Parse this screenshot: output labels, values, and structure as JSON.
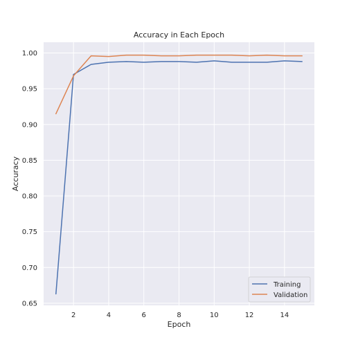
{
  "chart_data": {
    "type": "line",
    "title": "Accuracy in Each Epoch",
    "xlabel": "Epoch",
    "ylabel": "Accuracy",
    "x": [
      1,
      2,
      3,
      4,
      5,
      6,
      7,
      8,
      9,
      10,
      11,
      12,
      13,
      14,
      15
    ],
    "xlim": [
      0.3,
      15.7
    ],
    "ylim": [
      0.647,
      1.015
    ],
    "xticks": [
      2,
      4,
      6,
      8,
      10,
      12,
      14
    ],
    "yticks": [
      0.65,
      0.7,
      0.75,
      0.8,
      0.85,
      0.9,
      0.95,
      1.0
    ],
    "xtick_labels": [
      "2",
      "4",
      "6",
      "8",
      "10",
      "12",
      "14"
    ],
    "ytick_labels": [
      "0.65",
      "0.70",
      "0.75",
      "0.80",
      "0.85",
      "0.90",
      "0.95",
      "1.00"
    ],
    "grid": true,
    "legend_position": "lower-right",
    "background": "#eaeaf2",
    "series": [
      {
        "name": "Training",
        "color": "#4c72b0",
        "values": [
          0.663,
          0.97,
          0.984,
          0.987,
          0.988,
          0.987,
          0.988,
          0.988,
          0.987,
          0.989,
          0.987,
          0.987,
          0.987,
          0.989,
          0.988
        ]
      },
      {
        "name": "Validation",
        "color": "#dd8452",
        "values": [
          0.915,
          0.968,
          0.996,
          0.995,
          0.997,
          0.997,
          0.996,
          0.996,
          0.997,
          0.997,
          0.997,
          0.996,
          0.997,
          0.996,
          0.996
        ]
      }
    ]
  }
}
